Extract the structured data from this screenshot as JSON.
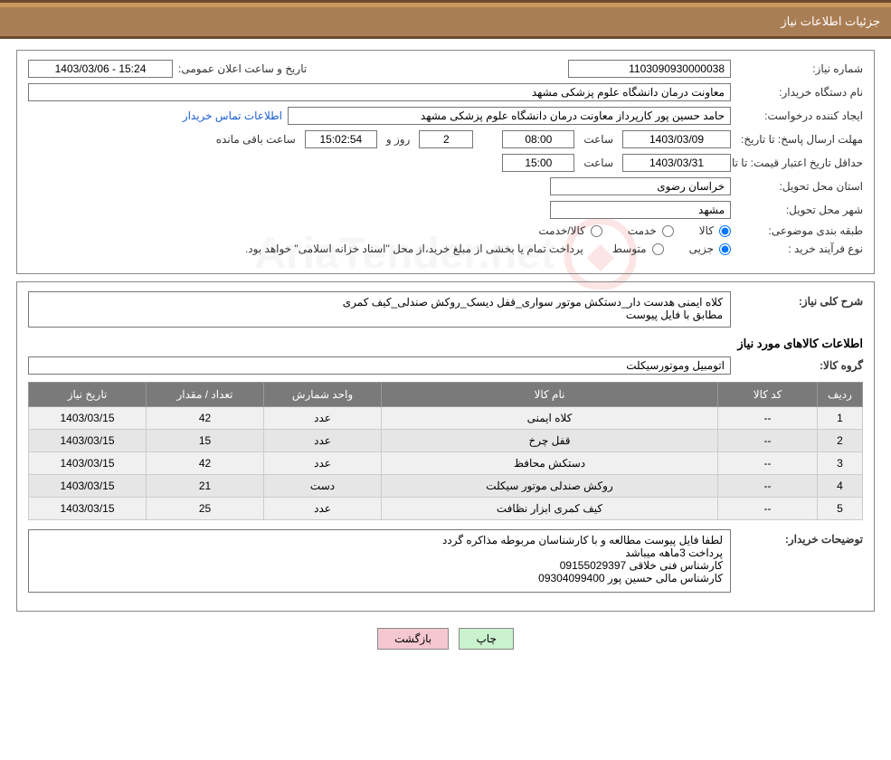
{
  "header": {
    "title": "جزئیات اطلاعات نیاز"
  },
  "labels": {
    "need_number": "شماره نیاز:",
    "announce_datetime": "تاریخ و ساعت اعلان عمومی:",
    "buyer_org": "نام دستگاه خریدار:",
    "requester": "ایجاد کننده درخواست:",
    "contact_link": "اطلاعات تماس خریدار",
    "response_deadline": "مهلت ارسال پاسخ:",
    "to_date": "تا تاریخ:",
    "hour": "ساعت",
    "day_and": "روز و",
    "remaining": "ساعت باقی مانده",
    "price_validity": "حداقل تاریخ اعتبار قیمت:",
    "delivery_province": "استان محل تحویل:",
    "delivery_city": "شهر محل تحویل:",
    "subject_class": "طبقه بندی موضوعی:",
    "goods": "کالا",
    "service": "خدمت",
    "goods_service": "کالا/خدمت",
    "purchase_type": "نوع فرآیند خرید :",
    "partial": "جزیی",
    "medium": "متوسط",
    "purchase_note": "پرداخت تمام یا بخشی از مبلغ خرید،از محل \"اسناد خزانه اسلامی\" خواهد بود.",
    "need_desc": "شرح کلی نیاز:",
    "goods_info_title": "اطلاعات کالاهای مورد نیاز",
    "goods_group": "گروه کالا:",
    "buyer_notes": "توضیحات خریدار:"
  },
  "fields": {
    "need_number": "1103090930000038",
    "announce_datetime": "1403/03/06 - 15:24",
    "buyer_org": "معاونت درمان دانشگاه علوم پزشکی مشهد",
    "requester": "حامد حسین پور کارپرداز معاونت درمان دانشگاه علوم پزشکی مشهد",
    "response_date": "1403/03/09",
    "response_hour": "08:00",
    "days_left": "2",
    "countdown": "15:02:54",
    "price_validity_date": "1403/03/31",
    "price_validity_hour": "15:00",
    "province": "خراسان رضوی",
    "city": "مشهد",
    "need_desc": "کلاه ایمنی هدست دار_دستکش موتور سواری_قفل دیسک_روکش صندلی_کیف کمری\nمطابق با فایل پیوست",
    "goods_group": "اتومبیل وموتورسیکلت",
    "buyer_notes": "لطفا فایل پیوست مطالعه و با کارشناسان مربوطه مذاکره گردد\nپرداخت 3ماهه میباشد\nکارشناس فنی خلاقی 09155029397\nکارشناس مالی حسین پور 09304099400"
  },
  "radios": {
    "goods_checked": true,
    "service_checked": false,
    "goods_service_checked": false,
    "partial_checked": true,
    "medium_checked": false
  },
  "table": {
    "headers": {
      "row": "ردیف",
      "code": "کد کالا",
      "name": "نام کالا",
      "unit": "واحد شمارش",
      "qty": "تعداد / مقدار",
      "date": "تاریخ نیاز"
    },
    "rows": [
      {
        "n": "1",
        "code": "--",
        "name": "کلاه ایمنی",
        "unit": "عدد",
        "qty": "42",
        "date": "1403/03/15"
      },
      {
        "n": "2",
        "code": "--",
        "name": "قفل چرخ",
        "unit": "عدد",
        "qty": "15",
        "date": "1403/03/15"
      },
      {
        "n": "3",
        "code": "--",
        "name": "دستکش محافظ",
        "unit": "عدد",
        "qty": "42",
        "date": "1403/03/15"
      },
      {
        "n": "4",
        "code": "--",
        "name": "روکش صندلی موتور سیکلت",
        "unit": "دست",
        "qty": "21",
        "date": "1403/03/15"
      },
      {
        "n": "5",
        "code": "--",
        "name": "کیف کمری ابزار نظافت",
        "unit": "عدد",
        "qty": "25",
        "date": "1403/03/15"
      }
    ]
  },
  "buttons": {
    "print": "چاپ",
    "back": "بازگشت"
  },
  "watermark": {
    "text": "AriaTender.net"
  },
  "style": {
    "header_bg": "#aa7e55",
    "header_border_top": "#c9985a",
    "divider": "#6b4a2d",
    "link_color": "#1a5fd6",
    "th_bg": "#7a7a7a",
    "td_bg_odd": "#f0f0f0",
    "td_bg_even": "#e6e6e6",
    "btn_print_bg": "#caf2cd",
    "btn_back_bg": "#f5c7d1"
  }
}
